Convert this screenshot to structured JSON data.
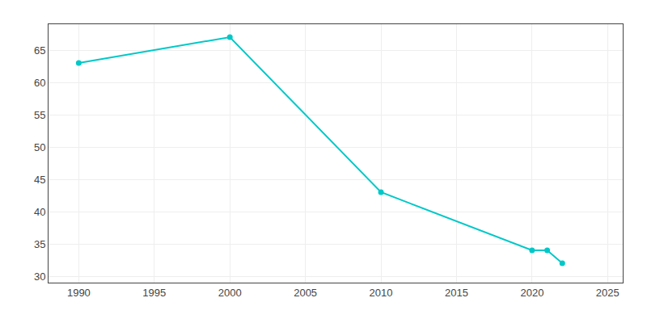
{
  "chart_data": {
    "type": "line",
    "x": [
      1990,
      2000,
      2010,
      2020,
      2021,
      2022
    ],
    "values": [
      63,
      67,
      43,
      34,
      34,
      32
    ],
    "color": "#00c8c8",
    "marker": "circle",
    "xlim": [
      1988,
      2026
    ],
    "ylim": [
      29,
      69
    ],
    "xticks": [
      1990,
      1995,
      2000,
      2005,
      2010,
      2015,
      2020,
      2025
    ],
    "yticks": [
      30,
      35,
      40,
      45,
      50,
      55,
      60,
      65
    ],
    "grid": true
  }
}
